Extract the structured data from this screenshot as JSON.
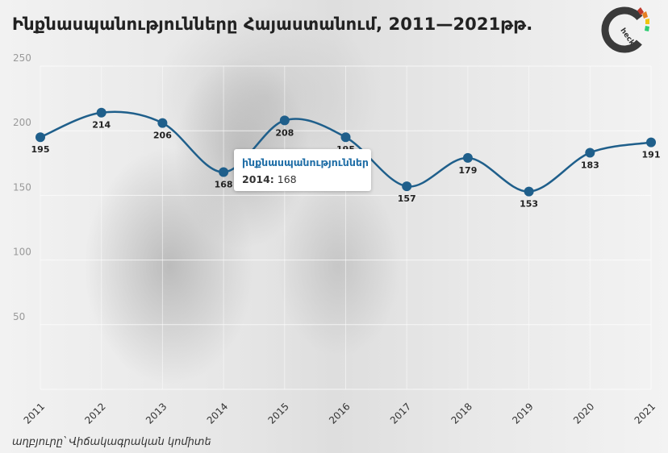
{
  "title": "Ինքնասպանությունները Հայաստանում, 2011—2021թթ.",
  "source": "աղբյուրը՝ Վիճակագրական կոմիտե",
  "logo": {
    "icon": "check-logo-icon",
    "text": "heck"
  },
  "colors": {
    "line": "#1f5f8b",
    "marker": "#1f5f8b",
    "tooltip_series": "#1e6da6"
  },
  "tooltip": {
    "series": "ինքնասպանություններ",
    "year": "2014",
    "value": "168"
  },
  "chart_data": {
    "type": "line",
    "title": "Ինքնասպանությունները Հայաստանում, 2011—2021թթ.",
    "x": [
      "2011",
      "2012",
      "2013",
      "2014",
      "2015",
      "2016",
      "2017",
      "2018",
      "2019",
      "2020",
      "2021"
    ],
    "series": [
      {
        "name": "ինքնասպանություններ",
        "values": [
          195,
          214,
          206,
          168,
          208,
          195,
          157,
          179,
          153,
          183,
          191
        ]
      }
    ],
    "ylim": [
      0,
      250
    ],
    "yticks": [
      50,
      100,
      150,
      200,
      250
    ],
    "grid": true,
    "data_labels": true
  }
}
